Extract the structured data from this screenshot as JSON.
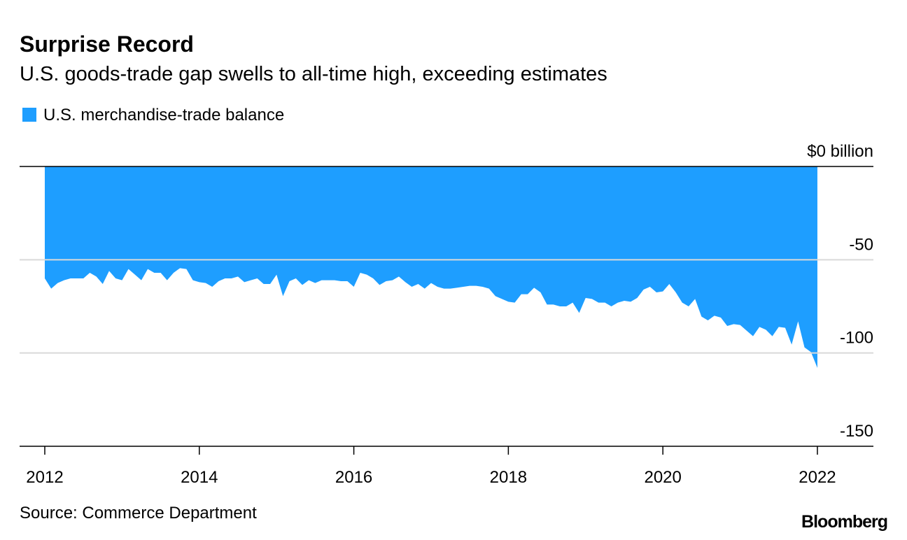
{
  "chart_data": {
    "type": "area",
    "title": "Surprise Record",
    "subtitle": "U.S. goods-trade gap swells to all-time high, exceeding estimates",
    "source": "Source: Commerce Department",
    "brand": "Bloomberg",
    "x": [
      2012,
      2012.083,
      2012.167,
      2012.25,
      2012.333,
      2012.417,
      2012.5,
      2012.583,
      2012.667,
      2012.75,
      2012.833,
      2012.917,
      2013,
      2013.083,
      2013.167,
      2013.25,
      2013.333,
      2013.417,
      2013.5,
      2013.583,
      2013.667,
      2013.75,
      2013.833,
      2013.917,
      2014,
      2014.083,
      2014.167,
      2014.25,
      2014.333,
      2014.417,
      2014.5,
      2014.583,
      2014.667,
      2014.75,
      2014.833,
      2014.917,
      2015,
      2015.083,
      2015.167,
      2015.25,
      2015.333,
      2015.417,
      2015.5,
      2015.583,
      2015.667,
      2015.75,
      2015.833,
      2015.917,
      2016,
      2016.083,
      2016.167,
      2016.25,
      2016.333,
      2016.417,
      2016.5,
      2016.583,
      2016.667,
      2016.75,
      2016.833,
      2016.917,
      2017,
      2017.083,
      2017.167,
      2017.25,
      2017.333,
      2017.417,
      2017.5,
      2017.583,
      2017.667,
      2017.75,
      2017.833,
      2017.917,
      2018,
      2018.083,
      2018.167,
      2018.25,
      2018.333,
      2018.417,
      2018.5,
      2018.583,
      2018.667,
      2018.75,
      2018.833,
      2018.917,
      2019,
      2019.083,
      2019.167,
      2019.25,
      2019.333,
      2019.417,
      2019.5,
      2019.583,
      2019.667,
      2019.75,
      2019.833,
      2019.917,
      2020,
      2020.083,
      2020.167,
      2020.25,
      2020.333,
      2020.417,
      2020.5,
      2020.583,
      2020.667,
      2020.75,
      2020.833,
      2020.917,
      2021,
      2021.083,
      2021.167,
      2021.25,
      2021.333,
      2021.417,
      2021.5,
      2021.583,
      2021.667,
      2021.75,
      2021.833,
      2021.917,
      2022
    ],
    "series": [
      {
        "name": "U.S. merchandise-trade balance",
        "color": "#1e9eff",
        "values": [
          -60,
          -65.5,
          -62.5,
          -61,
          -60,
          -60,
          -60,
          -57,
          -59,
          -63,
          -56,
          -60,
          -61,
          -55,
          -58,
          -61,
          -55,
          -57,
          -57,
          -61,
          -57,
          -54.5,
          -55,
          -61,
          -62,
          -62.5,
          -64.5,
          -61.5,
          -60,
          -60,
          -59,
          -62,
          -61,
          -60,
          -63,
          -63,
          -58,
          -69.5,
          -61.5,
          -60,
          -63.5,
          -61,
          -62.5,
          -61,
          -61,
          -61,
          -61.5,
          -61.5,
          -64.5,
          -57,
          -58,
          -60,
          -63.5,
          -61.5,
          -61,
          -59,
          -62,
          -64.5,
          -63,
          -65.5,
          -62.5,
          -64.5,
          -65.5,
          -65.5,
          -65,
          -64.5,
          -64,
          -64,
          -64.5,
          -65.5,
          -69.5,
          -71,
          -72.5,
          -73,
          -68.5,
          -68.5,
          -65,
          -67.5,
          -74,
          -74,
          -75,
          -75,
          -73,
          -78.5,
          -70.5,
          -71,
          -73,
          -73,
          -75,
          -73,
          -72,
          -72.5,
          -70.5,
          -66,
          -64.5,
          -67.5,
          -67,
          -63,
          -67.5,
          -73,
          -75,
          -71,
          -80.5,
          -82.5,
          -80,
          -81,
          -85.5,
          -84.5,
          -85,
          -88,
          -91,
          -86,
          -87.5,
          -91,
          -86,
          -86.5,
          -95.5,
          -83,
          -97,
          -99.5,
          -108
        ]
      }
    ],
    "xlim": [
      2011.674,
      2022.725
    ],
    "xticks": [
      2012,
      2014,
      2016,
      2018,
      2020,
      2022
    ],
    "ylim": [
      -150,
      0
    ],
    "yticks": [
      {
        "value": 0,
        "label": "$0 billion"
      },
      -50,
      -100,
      -150
    ],
    "grid": true
  }
}
